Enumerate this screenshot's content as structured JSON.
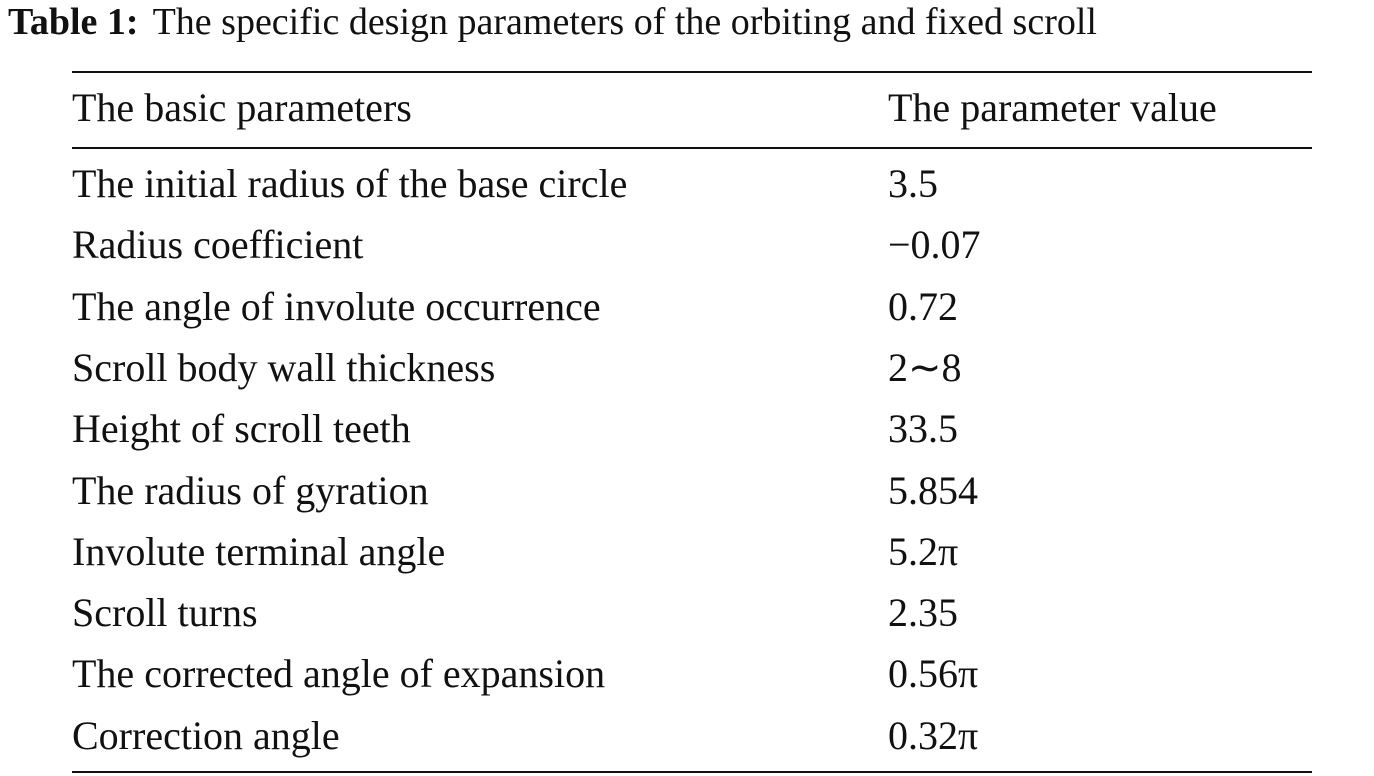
{
  "caption": {
    "label": "Table 1:",
    "text": "The specific design parameters of the orbiting and fixed scroll"
  },
  "table": {
    "header": [
      "The basic parameters",
      "The parameter value"
    ],
    "rows": [
      [
        "The initial radius of the base circle",
        "3.5"
      ],
      [
        "Radius coefficient",
        "−0.07"
      ],
      [
        "The angle of involute occurrence",
        "0.72"
      ],
      [
        "Scroll body wall thickness",
        "2∼8"
      ],
      [
        "Height of scroll teeth",
        "33.5"
      ],
      [
        "The radius of gyration",
        "5.854"
      ],
      [
        "Involute terminal angle",
        "5.2π"
      ],
      [
        "Scroll turns",
        "2.35"
      ],
      [
        "The corrected angle of expansion",
        "0.56π"
      ],
      [
        "Correction angle",
        "0.32π"
      ]
    ]
  }
}
